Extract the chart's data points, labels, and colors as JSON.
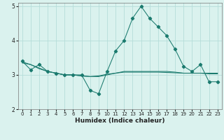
{
  "xlabel": "Humidex (Indice chaleur)",
  "x": [
    0,
    1,
    2,
    3,
    4,
    5,
    6,
    7,
    8,
    9,
    10,
    11,
    12,
    13,
    14,
    15,
    16,
    17,
    18,
    19,
    20,
    21,
    22,
    23
  ],
  "y_main": [
    3.4,
    3.15,
    3.3,
    3.1,
    3.05,
    3.0,
    3.0,
    3.0,
    2.55,
    2.45,
    3.1,
    3.7,
    4.0,
    4.65,
    5.0,
    4.65,
    4.4,
    4.15,
    3.75,
    3.25,
    3.1,
    3.3,
    2.8,
    2.8
  ],
  "y_line1": [
    3.35,
    3.3,
    3.2,
    3.1,
    3.05,
    3.0,
    3.0,
    2.97,
    2.95,
    2.95,
    3.0,
    3.05,
    3.1,
    3.1,
    3.1,
    3.1,
    3.1,
    3.1,
    3.08,
    3.05,
    3.05,
    3.05,
    3.05,
    3.05
  ],
  "y_line2": [
    3.38,
    3.3,
    3.18,
    3.1,
    3.05,
    3.0,
    3.0,
    2.97,
    2.95,
    2.97,
    3.02,
    3.05,
    3.08,
    3.08,
    3.08,
    3.08,
    3.08,
    3.07,
    3.06,
    3.05,
    3.05,
    3.05,
    3.03,
    3.03
  ],
  "ylim": [
    2,
    5.1
  ],
  "yticks": [
    2,
    3,
    4,
    5
  ],
  "xlim": [
    -0.5,
    23.5
  ],
  "line_color": "#1a7a6e",
  "bg_color": "#daf2ee",
  "grid_color": "#b5ddd9"
}
